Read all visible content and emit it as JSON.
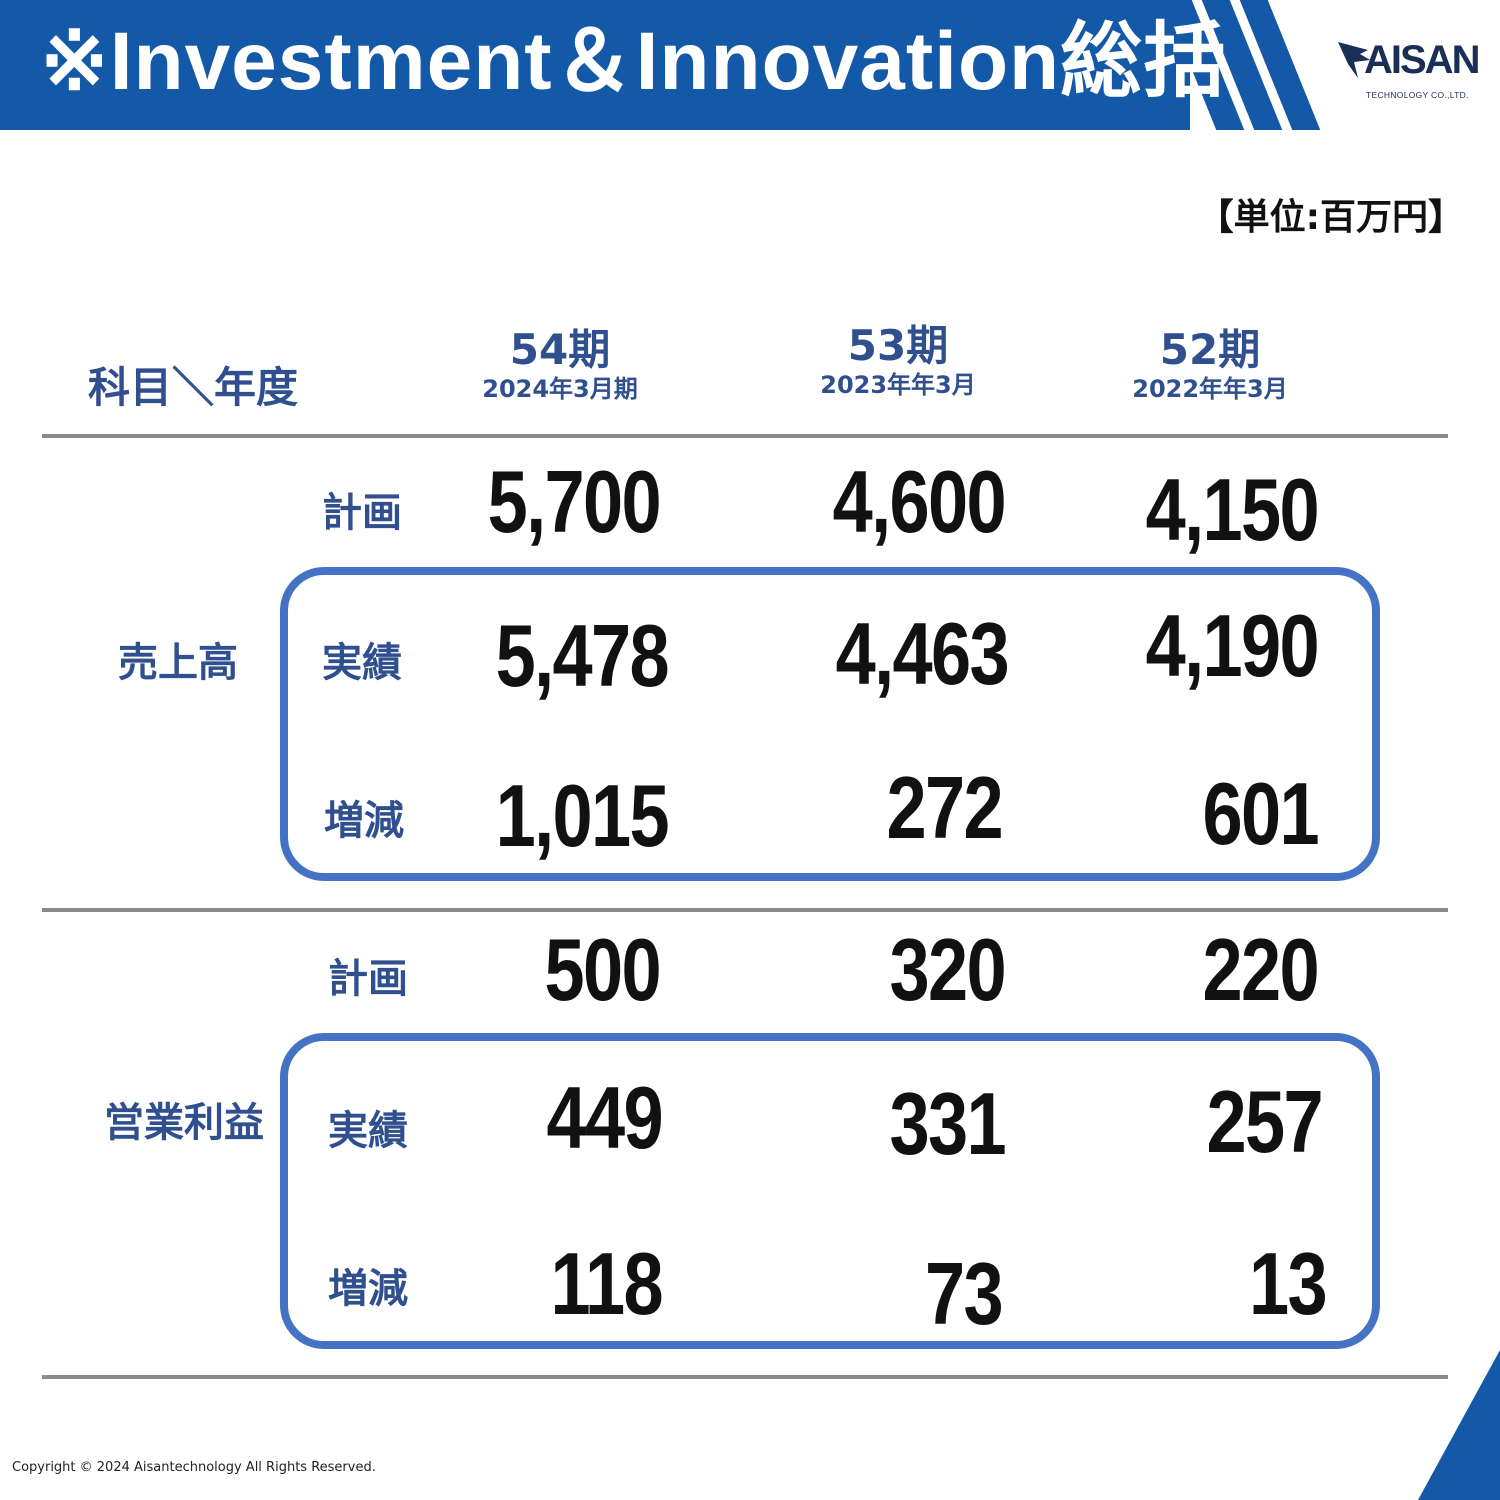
{
  "header": {
    "title": "※Investment＆Innovation総括",
    "logo_name": "AISAN",
    "logo_sub": "TECHNOLOGY CO.,LTD."
  },
  "unit_label": "【単位:百万円】",
  "table": {
    "corner_label": "科目＼年度",
    "columns": [
      {
        "term": "54期",
        "date": "2024年3月期"
      },
      {
        "term": "53期",
        "date": "2023年年3月"
      },
      {
        "term": "52期",
        "date": "2022年年3月"
      }
    ],
    "groups": [
      {
        "label": "売上高",
        "rows": [
          {
            "metric": "計画",
            "values": [
              "5,700",
              "4,600",
              "4,150"
            ]
          },
          {
            "metric": "実績",
            "values": [
              "5,478",
              "4,463",
              "4,190"
            ]
          },
          {
            "metric": "増減",
            "values": [
              "1,015",
              "272",
              "601"
            ]
          }
        ]
      },
      {
        "label": "営業利益",
        "rows": [
          {
            "metric": "計画",
            "values": [
              "500",
              "320",
              "220"
            ]
          },
          {
            "metric": "実績",
            "values": [
              "449",
              "331",
              "257"
            ]
          },
          {
            "metric": "増減",
            "values": [
              "118",
              "73",
              "13"
            ]
          }
        ]
      }
    ]
  },
  "footer": {
    "copyright": "Copyright © 2024 Aisantechnology All Rights Reserved."
  },
  "colors": {
    "header_blue": "#1458a8",
    "label_blue": "#2f4f8f",
    "box_blue": "#4472c4",
    "rule_gray": "#8a8a8a"
  }
}
